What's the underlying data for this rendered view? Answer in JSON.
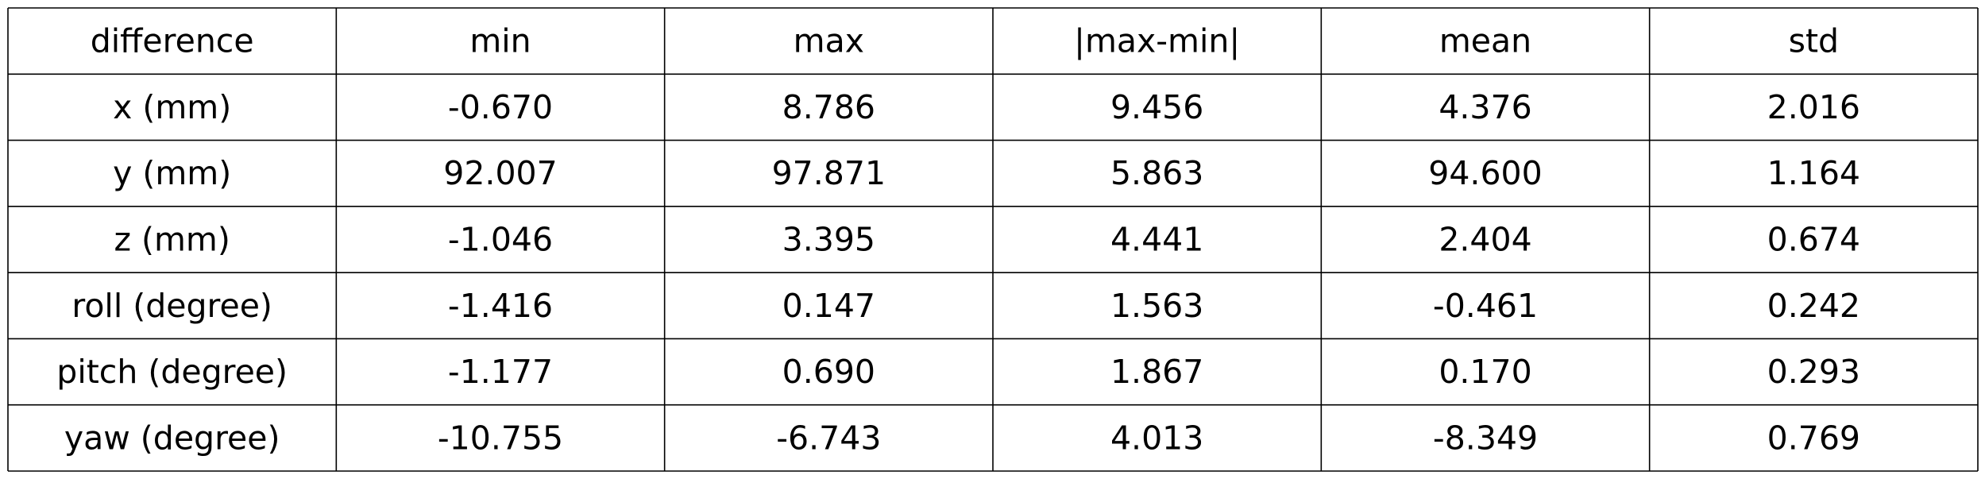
{
  "chart_data": {
    "type": "table",
    "columns": [
      "difference",
      "min",
      "max",
      "|max-min|",
      "mean",
      "std"
    ],
    "rows": [
      [
        "x (mm)",
        "-0.670",
        "8.786",
        "9.456",
        "4.376",
        "2.016"
      ],
      [
        "y (mm)",
        "92.007",
        "97.871",
        "5.863",
        "94.600",
        "1.164"
      ],
      [
        "z (mm)",
        "-1.046",
        "3.395",
        "4.441",
        "2.404",
        "0.674"
      ],
      [
        "roll (degree)",
        "-1.416",
        "0.147",
        "1.563",
        "-0.461",
        "0.242"
      ],
      [
        "pitch (degree)",
        "-1.177",
        "0.690",
        "1.867",
        "0.170",
        "0.293"
      ],
      [
        "yaw (degree)",
        "-10.755",
        "-6.743",
        "4.013",
        "-8.349",
        "0.769"
      ]
    ]
  }
}
